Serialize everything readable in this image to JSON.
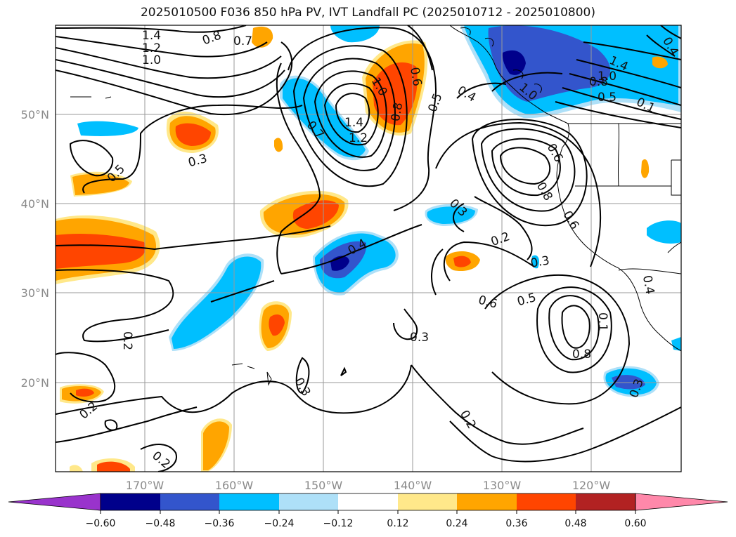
{
  "title": "2025010500 F036 850 hPa PV, IVT Landfall PC (2025010712 - 2025010800)",
  "lat_labels": [
    "50°N",
    "40°N",
    "30°N",
    "20°N"
  ],
  "lon_labels": [
    "170°W",
    "160°W",
    "150°W",
    "140°W",
    "130°W",
    "120°W"
  ],
  "colorbar": {
    "ticks": [
      "−0.60",
      "−0.48",
      "−0.36",
      "−0.24",
      "−0.12",
      "0.12",
      "0.24",
      "0.36",
      "0.48",
      "0.60"
    ],
    "colors": [
      "#9933cc",
      "#00008b",
      "#3355cc",
      "#00bfff",
      "#aee0f8",
      "#ffffff",
      "#ffe88a",
      "#ffa500",
      "#ff4500",
      "#b22222",
      "#ff88aa"
    ]
  },
  "colors": {
    "neg_strong": "#00008b",
    "neg_mid": "#3355cc",
    "neg_light": "#00bfff",
    "neg_faint": "#aee0f8",
    "pos_faint": "#ffe88a",
    "pos_light": "#ffa500",
    "pos_mid": "#ff4500",
    "pos_strong": "#b22222"
  },
  "contour_labels": [
    "1.4",
    "1.2",
    "1.0",
    "0.8",
    "0.7",
    "0.6",
    "0.5",
    "0.4",
    "0.3",
    "0.2",
    "0.1"
  ],
  "map_labels": [
    "1.4",
    "1.2",
    "1.0",
    "0.8",
    "0.7",
    "1.0",
    "0.8",
    "0.6",
    "0.5",
    "0.4",
    "1.4",
    "1.2",
    "0.7",
    "1.4",
    "1.0",
    "0.8",
    "0.5",
    "0.1",
    "1.0",
    "0.3",
    "0.5",
    "0.6",
    "0.8",
    "0.6",
    "0.3",
    "0.2",
    "0.4",
    "0.6",
    "0.5",
    "0.1",
    "0.8",
    "0.4",
    "0.2",
    "0.3",
    "0.3",
    "0.2",
    "0.2",
    "0.3",
    "0.2",
    "0.4",
    "0.3"
  ]
}
